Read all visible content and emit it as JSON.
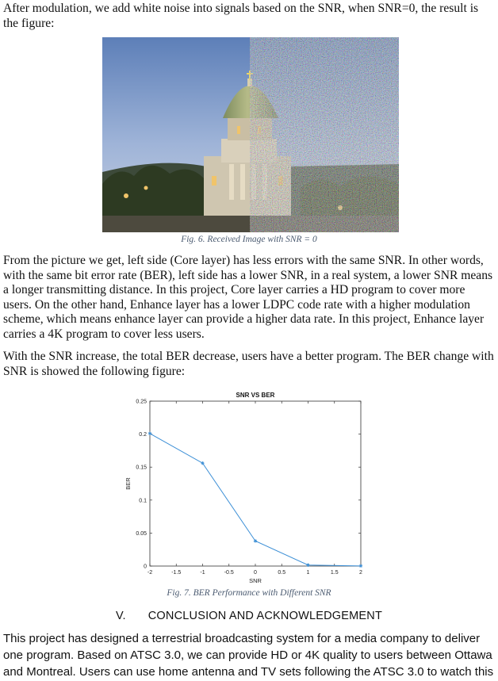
{
  "paragraphs": {
    "p1": "After modulation, we add white noise into signals based on the SNR, when SNR=0, the result is the figure:",
    "p2": "From the picture we get, left side (Core layer) has less errors with the same SNR. In other words, with the same bit error rate (BER), left side has a lower SNR, in a real system, a lower SNR means a longer transmitting distance. In this project, Core layer carries a HD program to cover more users. On the other hand, Enhance layer has a lower LDPC code rate with a higher modulation scheme, which means enhance layer can provide a higher data rate. In this project, Enhance layer carries a 4K program to cover less users.",
    "p3": "With the SNR increase, the total BER decrease, users have a better program. The BER change with SNR is showed the following figure:",
    "p4": "This project has designed a terrestrial broadcasting system for a media company to deliver one program. Based on ATSC 3.0, we can provide HD or 4K quality to users between Ottawa and Montreal. Users can use home antenna and TV sets following the ATSC 3.0 to watch this"
  },
  "figure6": {
    "caption": "Fig. 6. Received Image with SNR = 0"
  },
  "figure7": {
    "caption": "Fig. 7. BER Performance with Different SNR"
  },
  "section": {
    "number": "V.",
    "title": "CONCLUSION AND ACKNOWLEDGEMENT"
  },
  "chart_data": {
    "type": "line",
    "title": "SNR VS BER",
    "xlabel": "SNR",
    "ylabel": "BER",
    "x": [
      -2,
      -1,
      0,
      1,
      2
    ],
    "series": [
      {
        "values": [
          0.201,
          0.156,
          0.038,
          0.0015,
          0.0002
        ]
      }
    ],
    "xlim": [
      -2,
      2
    ],
    "ylim": [
      0,
      0.25
    ],
    "xticks": [
      "-2",
      "-1.5",
      "-1",
      "-0.5",
      "0",
      "0.5",
      "1",
      "1.5",
      "2"
    ],
    "yticks": [
      "0",
      "0.05",
      "0.1",
      "0.15",
      "0.2",
      "0.25"
    ],
    "grid": false,
    "line_color": "#3c8fd6",
    "marker": "asterisk"
  }
}
